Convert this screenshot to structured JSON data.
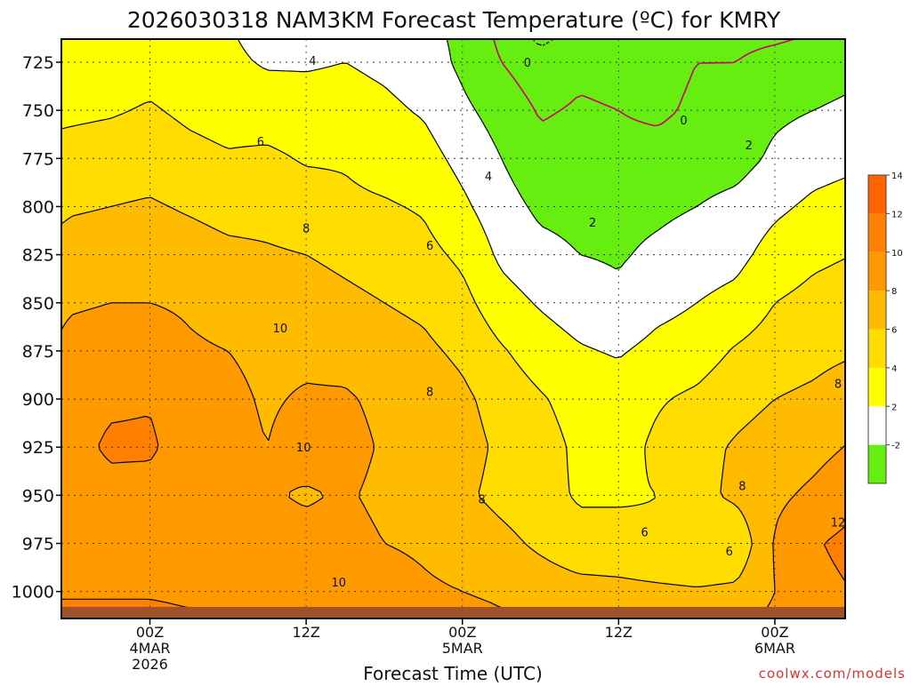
{
  "chart_data": {
    "type": "heatmap",
    "title": "2026030318 NAM3KM Forecast Temperature (ºC) for KMRY",
    "xlabel": "Forecast Time (UTC)",
    "ylabel": "",
    "x_ticks": [
      {
        "hour": 6,
        "lines": [
          "00Z",
          "4MAR",
          "2026"
        ]
      },
      {
        "hour": 18,
        "lines": [
          "12Z"
        ]
      },
      {
        "hour": 30,
        "lines": [
          "00Z",
          "5MAR"
        ]
      },
      {
        "hour": 42,
        "lines": [
          "12Z"
        ]
      },
      {
        "hour": 54,
        "lines": [
          "00Z",
          "6MAR"
        ]
      }
    ],
    "xlim": [
      -0.8,
      59.4
    ],
    "y_ticks": [
      725,
      750,
      775,
      800,
      825,
      850,
      875,
      900,
      925,
      950,
      975,
      1000
    ],
    "ylim": [
      1014,
      713
    ],
    "y_reversed": true,
    "ground_level_hpa": 1008,
    "grid": true,
    "colorbar": {
      "levels": [
        -2,
        2,
        4,
        6,
        8,
        10,
        12,
        14,
        16
      ],
      "labels": [
        "-2",
        "2",
        "4",
        "6",
        "8",
        "10",
        "12",
        "14"
      ],
      "colors": [
        "#66ee11",
        "#ffffff",
        "#ffff00",
        "#ffdd00",
        "#ffbb00",
        "#ff9900",
        "#ff8000",
        "#ff6400"
      ]
    },
    "contour_labels": [
      {
        "text": "0",
        "hour": 35,
        "hpa": 725
      },
      {
        "text": "0",
        "hour": 47,
        "hpa": 755
      },
      {
        "text": "2",
        "hour": 40,
        "hpa": 808
      },
      {
        "text": "2",
        "hour": 52,
        "hpa": 768
      },
      {
        "text": "4",
        "hour": 18.5,
        "hpa": 724
      },
      {
        "text": "4",
        "hour": 32,
        "hpa": 784
      },
      {
        "text": "6",
        "hour": 14.5,
        "hpa": 766
      },
      {
        "text": "6",
        "hour": 27.5,
        "hpa": 820
      },
      {
        "text": "6",
        "hour": 44,
        "hpa": 969
      },
      {
        "text": "6",
        "hour": 50.5,
        "hpa": 979
      },
      {
        "text": "8",
        "hour": 18,
        "hpa": 811
      },
      {
        "text": "8",
        "hour": 27.5,
        "hpa": 896
      },
      {
        "text": "8",
        "hour": 31.5,
        "hpa": 952
      },
      {
        "text": "8",
        "hour": 51.5,
        "hpa": 945
      },
      {
        "text": "8",
        "hour": 59.5,
        "hpa": 892
      },
      {
        "text": "10",
        "hour": 16,
        "hpa": 863
      },
      {
        "text": "10",
        "hour": 17.8,
        "hpa": 925
      },
      {
        "text": "10",
        "hour": 20.5,
        "hpa": 995
      },
      {
        "text": "12",
        "hour": 60.5,
        "hpa": 964
      }
    ],
    "data_grid": {
      "levels_hpa": [
        713,
        725,
        750,
        775,
        800,
        825,
        850,
        875,
        900,
        925,
        950,
        975,
        1000,
        1008
      ],
      "columns": [
        {
          "hour": -1,
          "temps": [
            4.6,
            4.8,
            5.6,
            6.6,
            7.6,
            8.6,
            9.6,
            10.2,
            10.6,
            10.8,
            10.2,
            11.2,
            11.8,
            12.2
          ]
        },
        {
          "hour": 0,
          "temps": [
            4.6,
            4.8,
            5.6,
            6.8,
            7.8,
            8.8,
            9.8,
            10.6,
            11.0,
            11.2,
            10.6,
            11.4,
            11.8,
            12.2
          ]
        },
        {
          "hour": 3,
          "temps": [
            4.5,
            4.9,
            5.8,
            7.0,
            8.0,
            9.0,
            10.0,
            10.8,
            11.6,
            12.4,
            11.2,
            11.6,
            11.8,
            12.2
          ]
        },
        {
          "hour": 6,
          "temps": [
            4.8,
            5.2,
            6.2,
            7.2,
            8.2,
            9.0,
            10.0,
            10.8,
            11.8,
            12.4,
            11.0,
            11.4,
            11.8,
            12.2
          ]
        },
        {
          "hour": 9,
          "temps": [
            4.4,
            4.8,
            5.6,
            6.6,
            7.8,
            8.8,
            9.8,
            10.2,
            10.6,
            10.6,
            10.4,
            11.0,
            11.6,
            12.0
          ]
        },
        {
          "hour": 12,
          "temps": [
            4.2,
            4.4,
            5.2,
            6.2,
            7.4,
            8.4,
            9.4,
            10.0,
            10.4,
            10.6,
            10.2,
            10.8,
            11.4,
            11.8
          ]
        },
        {
          "hour": 15,
          "temps": [
            3.4,
            3.8,
            5.0,
            6.4,
            7.4,
            8.2,
            9.2,
            9.6,
            9.8,
            10.0,
            10.2,
            10.6,
            11.2,
            11.6
          ]
        },
        {
          "hour": 18,
          "temps": [
            3.6,
            3.8,
            4.8,
            5.8,
            7.0,
            8.0,
            8.8,
            9.6,
            10.2,
            10.8,
            9.8,
            10.6,
            11.0,
            11.4
          ]
        },
        {
          "hour": 21,
          "temps": [
            3.6,
            4.0,
            4.8,
            5.8,
            6.4,
            7.6,
            8.4,
            9.4,
            10.2,
            10.6,
            10.2,
            10.6,
            11.0,
            11.2
          ]
        },
        {
          "hour": 24,
          "temps": [
            3.2,
            3.6,
            4.4,
            5.2,
            6.2,
            7.2,
            8.0,
            8.8,
            9.6,
            9.8,
            9.6,
            10.0,
            10.6,
            11.0
          ]
        },
        {
          "hour": 27,
          "temps": [
            2.6,
            3.0,
            3.8,
            4.8,
            5.8,
            6.6,
            7.6,
            8.4,
            9.2,
            9.6,
            9.4,
            9.8,
            10.2,
            10.6
          ]
        },
        {
          "hour": 30,
          "temps": [
            1.6,
            1.6,
            2.4,
            3.4,
            4.4,
            5.6,
            6.6,
            7.6,
            8.4,
            8.8,
            8.4,
            9.4,
            10.0,
            10.4
          ]
        },
        {
          "hour": 33,
          "temps": [
            -0.4,
            0.0,
            1.2,
            2.0,
            2.8,
            3.6,
            4.8,
            6.2,
            7.2,
            7.6,
            7.4,
            8.6,
            9.6,
            10.0
          ]
        },
        {
          "hour": 36,
          "temps": [
            -2.4,
            -1.2,
            -0.2,
            0.6,
            1.6,
            2.6,
            3.8,
            5.0,
            6.2,
            6.8,
            6.6,
            7.6,
            9.2,
            9.8
          ]
        },
        {
          "hour": 39,
          "temps": [
            -1.2,
            -0.4,
            0.2,
            0.8,
            1.4,
            2.0,
            3.0,
            4.2,
            5.2,
            5.6,
            5.8,
            6.6,
            8.8,
            9.6
          ]
        },
        {
          "hour": 42,
          "temps": [
            -1.8,
            -0.6,
            0.0,
            0.6,
            1.4,
            1.8,
            2.4,
            3.8,
            5.0,
            5.2,
            5.8,
            6.6,
            8.6,
            9.4
          ]
        },
        {
          "hour": 45,
          "temps": [
            -1.6,
            -0.8,
            -0.4,
            0.8,
            1.6,
            2.4,
            3.4,
            4.6,
            5.8,
            6.4,
            6.0,
            6.2,
            8.4,
            9.2
          ]
        },
        {
          "hour": 48,
          "temps": [
            -0.4,
            0.0,
            0.4,
            1.0,
            2.0,
            3.0,
            4.0,
            5.0,
            6.4,
            7.4,
            7.4,
            6.0,
            8.2,
            9.0
          ]
        },
        {
          "hour": 51,
          "temps": [
            -0.4,
            0.0,
            0.6,
            1.2,
            2.6,
            3.4,
            4.6,
            6.2,
            7.4,
            8.2,
            8.4,
            6.4,
            8.4,
            9.2
          ]
        },
        {
          "hour": 54,
          "temps": [
            -0.2,
            0.6,
            1.6,
            2.4,
            3.6,
            4.8,
            6.0,
            7.0,
            8.0,
            8.8,
            9.6,
            10.2,
            10.0,
            10.2
          ]
        },
        {
          "hour": 57,
          "temps": [
            0.2,
            1.0,
            2.0,
            3.2,
            4.4,
            5.6,
            6.6,
            7.4,
            8.4,
            9.4,
            10.4,
            11.8,
            11.4,
            11.2
          ]
        },
        {
          "hour": 60,
          "temps": [
            0.6,
            1.4,
            2.4,
            3.6,
            4.8,
            6.0,
            7.0,
            7.8,
            9.2,
            10.2,
            11.4,
            12.6,
            12.0,
            11.8
          ]
        }
      ]
    },
    "frozen_contour_label": "0"
  },
  "footer": {
    "credit": "coolwx.com/models",
    "credit_color": "#e03030"
  },
  "colors": {
    "contour_line": "#000000",
    "zero_line": "#cc0066",
    "ground": "#a0522d",
    "grid": "#555555"
  }
}
